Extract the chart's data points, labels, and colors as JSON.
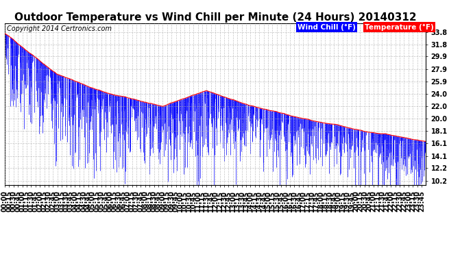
{
  "title": "Outdoor Temperature vs Wind Chill per Minute (24 Hours) 20140312",
  "copyright": "Copyright 2014 Certronics.com",
  "legend_wind_chill": "Wind Chill (°F)",
  "legend_temperature": "Temperature (°F)",
  "ylabel_right_ticks": [
    10.2,
    12.2,
    14.1,
    16.1,
    18.1,
    20.0,
    22.0,
    24.0,
    25.9,
    27.9,
    29.9,
    31.8,
    33.8
  ],
  "ylim": [
    9.5,
    35.2
  ],
  "num_minutes": 1440,
  "bg_color": "#ffffff",
  "plot_bg_color": "#ffffff",
  "temp_color": "#ff0000",
  "wind_chill_color": "#0000ff",
  "grid_color": "#aaaaaa",
  "title_fontsize": 11,
  "copyright_fontsize": 7,
  "tick_fontsize": 7,
  "legend_fontsize": 7.5,
  "figwidth": 6.9,
  "figheight": 3.75
}
